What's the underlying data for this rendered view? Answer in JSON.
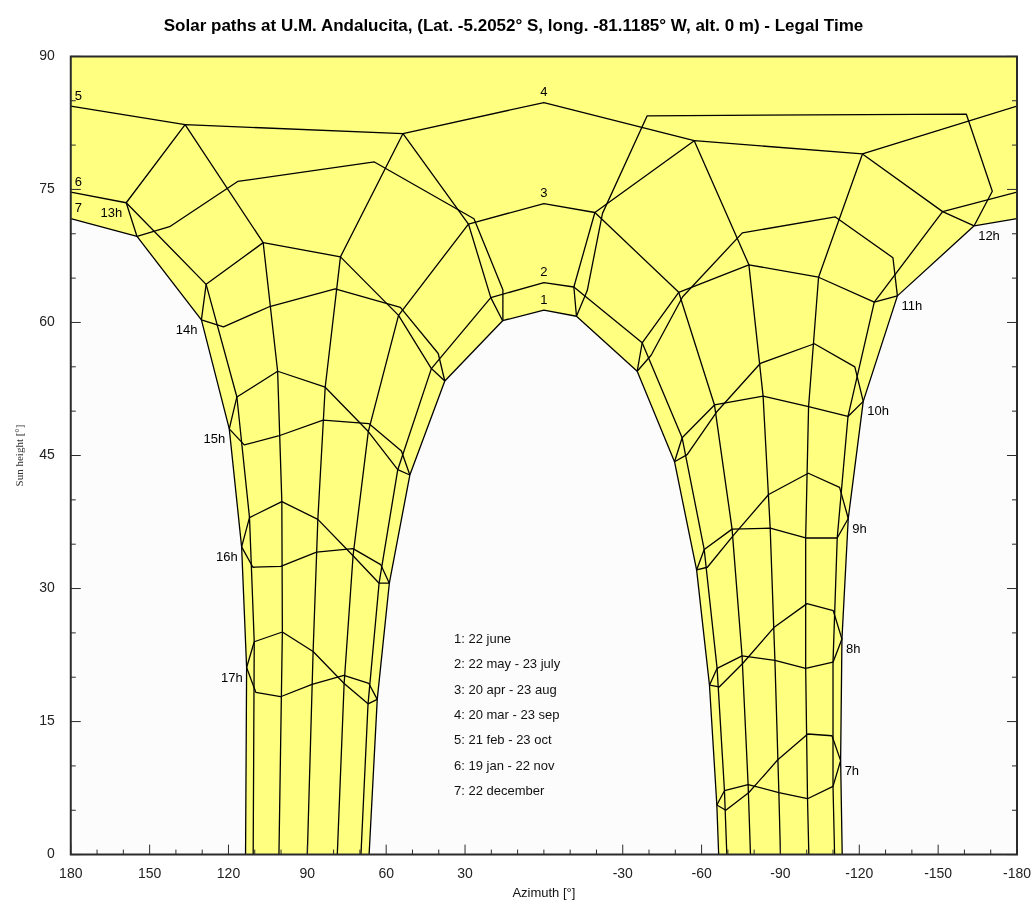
{
  "chart_data": {
    "type": "line",
    "title": "Solar paths at U.M. Andalucita, (Lat. -5.2052° S, long. -81.1185° W, alt. 0 m) - Legal Time",
    "xlabel": "Azimuth [°]",
    "ylabel": "Sun height [°]",
    "xlim": [
      180,
      -180
    ],
    "xticks": [
      180,
      {
        "value": 170,
        "label": null
      },
      {
        "value": 160,
        "label": null
      },
      150,
      {
        "value": 140,
        "label": null
      },
      {
        "value": 130,
        "label": null
      },
      120,
      {
        "value": 110,
        "label": null
      },
      {
        "value": 100,
        "label": null
      },
      90,
      {
        "value": 80,
        "label": null
      },
      {
        "value": 70,
        "label": null
      },
      60,
      {
        "value": 50,
        "label": null
      },
      {
        "value": 40,
        "label": null
      },
      30,
      {
        "value": 20,
        "label": null
      },
      {
        "value": 10,
        "label": null
      },
      {
        "value": 0,
        "label": null
      },
      {
        "value": -10,
        "label": null
      },
      {
        "value": -20,
        "label": null
      },
      -30,
      {
        "value": -40,
        "label": null
      },
      {
        "value": -50,
        "label": null
      },
      -60,
      {
        "value": -70,
        "label": null
      },
      {
        "value": -80,
        "label": null
      },
      -90,
      {
        "value": -100,
        "label": null
      },
      {
        "value": -110,
        "label": null
      },
      -120,
      {
        "value": -130,
        "label": null
      },
      {
        "value": -140,
        "label": null
      },
      -150,
      {
        "value": -160,
        "label": null
      },
      {
        "value": -170,
        "label": null
      },
      -180
    ],
    "ylim": [
      0,
      90
    ],
    "yticks": [
      0,
      {
        "value": 5,
        "label": null
      },
      {
        "value": 10,
        "label": null
      },
      15,
      {
        "value": 20,
        "label": null
      },
      {
        "value": 25,
        "label": null
      },
      30,
      {
        "value": 35,
        "label": null
      },
      {
        "value": 40,
        "label": null
      },
      45,
      {
        "value": 50,
        "label": null
      },
      {
        "value": 55,
        "label": null
      },
      60,
      {
        "value": 65,
        "label": null
      },
      {
        "value": 70,
        "label": null
      },
      75,
      {
        "value": 80,
        "label": null
      },
      {
        "value": 85,
        "label": null
      },
      90
    ],
    "marker": "none",
    "line_style": "solid",
    "annotations": [
      "1: 22 june",
      "2: 22 may - 23 july",
      "3: 20 apr - 23 aug",
      "4: 20 mar - 23 sep",
      "5: 21 feb - 23 oct",
      "6: 19 jan - 22 nov",
      "7: 22 december"
    ],
    "series": [
      {
        "name": "1",
        "color": "#000000",
        "x": [
          -66.5,
          -65.8,
          -63.0,
          -58.1,
          -49.7,
          -35.5,
          -12.4,
          0,
          15.7,
          37.7,
          51.0,
          58.8,
          63.4,
          66.5
        ],
        "values": [
          0,
          5.6,
          19.1,
          32.1,
          44.3,
          54.5,
          60.7,
          61.4,
          60.2,
          53.4,
          42.8,
          30.6,
          17.5,
          0
        ]
      },
      {
        "name": "2",
        "color": "#000000",
        "x": [
          -69.6,
          -68.7,
          -65.9,
          -61.0,
          -52.6,
          -37.4,
          -11.4,
          0,
          20.2,
          42.8,
          55.6,
          62.7,
          66.9,
          69.6
        ],
        "values": [
          0,
          7.2,
          21.0,
          34.4,
          47.0,
          57.7,
          64.0,
          64.5,
          62.8,
          54.8,
          43.4,
          30.6,
          17.0,
          0
        ]
      },
      {
        "name": "3",
        "color": "#000000",
        "x": [
          -78.6,
          -77.7,
          -75.4,
          -71.6,
          -64.9,
          -51.3,
          -19.4,
          0,
          28.7,
          55.3,
          66.8,
          72.6,
          76.0,
          78.6
        ],
        "values": [
          0,
          7.9,
          22.4,
          36.7,
          50.7,
          63.4,
          72.4,
          73.4,
          71.1,
          60.8,
          47.7,
          33.7,
          19.3,
          0
        ]
      },
      {
        "name": "4",
        "color": "#000000",
        "x": [
          -90,
          -89.4,
          -87.9,
          -86.1,
          -83.4,
          -78.0,
          -57.2,
          0,
          53.6,
          77.4,
          83.2,
          86.0,
          87.8,
          90
        ],
        "values": [
          0,
          7.0,
          21.9,
          36.8,
          51.7,
          66.5,
          80.5,
          84.8,
          81.3,
          67.4,
          52.7,
          37.8,
          22.9,
          0
        ]
      },
      {
        "name": "5",
        "color": "#000000",
        "x": [
          -100.8,
          -100.3,
          -99.6,
          -99.6,
          -100.7,
          -104.5,
          -121.2,
          -180,
          null,
          180,
          136.5,
          106.8,
          101.3,
          99.7,
          99.5,
          100.8
        ],
        "values": [
          0,
          6.3,
          21.0,
          35.7,
          50.5,
          65.1,
          79.0,
          84.4,
          null,
          84.4,
          82.3,
          69.0,
          54.5,
          39.8,
          25.1,
          0
        ]
      },
      {
        "name": "6",
        "color": "#000000",
        "x": [
          -110.6,
          -110.0,
          -110.0,
          -111.6,
          -115.7,
          -125.7,
          -151.7,
          -180,
          null,
          180,
          158.9,
          128.5,
          116.8,
          112.0,
          110.2,
          110.6
        ],
        "values": [
          0,
          7.7,
          21.7,
          35.7,
          49.4,
          62.3,
          72.5,
          74.7,
          null,
          74.7,
          73.5,
          64.3,
          51.6,
          38.0,
          24.0,
          0
        ]
      },
      {
        "name": "7",
        "color": "#000000",
        "x": [
          -113.5,
          -112.9,
          -113.4,
          -115.8,
          -121.5,
          -134.5,
          -163.7,
          -180,
          null,
          180,
          154.8,
          130.3,
          119.7,
          115.0,
          113.1,
          113.5
        ],
        "values": [
          0,
          10.6,
          24.3,
          37.9,
          51.1,
          63.0,
          70.9,
          71.7,
          null,
          71.7,
          69.7,
          60.3,
          48.0,
          34.7,
          21.1,
          0
        ]
      },
      {
        "name": "7h",
        "color": "#000000",
        "x": [
          -112.9,
          -110.0,
          -100.3,
          -89.4,
          -77.7,
          -68.7,
          -65.8
        ],
        "values": [
          10.6,
          7.7,
          6.3,
          7.0,
          7.9,
          7.2,
          5.6
        ]
      },
      {
        "color": "#000000",
        "x": [
          -65.8,
          -69.2,
          -78.0,
          -89.0,
          -100.4,
          -109.6,
          -112.9
        ],
        "values": [
          5.6,
          5.0,
          7.0,
          10.7,
          13.6,
          13.4,
          10.6
        ]
      },
      {
        "name": "8h",
        "color": "#000000",
        "x": [
          -113.4,
          -110.0,
          -99.6,
          -87.9,
          -75.4,
          -65.9,
          -63.0
        ],
        "values": [
          24.3,
          21.7,
          21.0,
          21.9,
          22.4,
          21.0,
          19.1
        ]
      },
      {
        "color": "#000000",
        "x": [
          -63.0,
          -66.7,
          -75.8,
          -87.5,
          -100.1,
          -110.1,
          -113.4
        ],
        "values": [
          19.1,
          18.9,
          21.6,
          25.6,
          28.3,
          27.5,
          24.3
        ]
      },
      {
        "name": "9h",
        "color": "#000000",
        "x": [
          -115.8,
          -111.6,
          -99.6,
          -86.1,
          -71.6,
          -61.0,
          -58.1
        ],
        "values": [
          37.9,
          35.7,
          35.7,
          36.8,
          36.7,
          34.4,
          32.1
        ]
      },
      {
        "color": "#000000",
        "x": [
          -58.1,
          -62.2,
          -72.1,
          -85.5,
          -100.6,
          -112.5,
          -115.8
        ],
        "values": [
          32.1,
          32.4,
          36.0,
          40.6,
          43.0,
          41.4,
          37.9
        ]
      },
      {
        "name": "10h",
        "color": "#000000",
        "x": [
          -121.5,
          -115.7,
          -100.7,
          -83.4,
          -64.9,
          -52.6,
          -49.7
        ],
        "values": [
          51.1,
          49.4,
          50.5,
          51.7,
          50.7,
          47.0,
          44.3
        ]
      },
      {
        "color": "#000000",
        "x": [
          -49.7,
          -54.5,
          -65.7,
          -82.4,
          -102.9,
          -118.3,
          -121.5
        ],
        "values": [
          44.3,
          45.1,
          49.9,
          55.4,
          57.6,
          55.0,
          51.1
        ]
      },
      {
        "name": "11h",
        "color": "#000000",
        "x": [
          -134.5,
          -125.7,
          -104.5,
          -78.0,
          -51.3,
          -37.4,
          -35.5
        ],
        "values": [
          63.0,
          62.3,
          65.1,
          66.5,
          63.4,
          57.7,
          54.5
        ]
      },
      {
        "color": "#000000",
        "x": [
          -35.5,
          -40.8,
          -52.8,
          -75.5,
          -110.9,
          -132.8,
          -134.5
        ],
        "values": [
          54.5,
          56.3,
          62.9,
          70.1,
          71.9,
          67.3,
          63.0
        ]
      },
      {
        "name": "12h",
        "color": "#000000",
        "x": [
          -163.7,
          -151.7,
          -121.2,
          -57.2,
          -19.4,
          -11.4,
          -12.4
        ],
        "values": [
          70.9,
          72.5,
          79.0,
          80.5,
          72.4,
          64.0,
          60.7
        ]
      },
      {
        "color": "#000000",
        "x": [
          -12.4,
          -16.5,
          -22.3,
          -39.3,
          -160.7,
          -170.6,
          -163.7
        ],
        "values": [
          60.7,
          63.6,
          72.3,
          83.3,
          83.5,
          74.8,
          70.9
        ]
      },
      {
        "name": "13h",
        "color": "#000000",
        "x": [
          154.8,
          158.9,
          136.5,
          53.6,
          28.7,
          20.2,
          15.7
        ],
        "values": [
          69.7,
          73.5,
          82.3,
          81.3,
          71.1,
          62.8,
          60.2
        ]
      },
      {
        "color": "#000000",
        "x": [
          15.7,
          15.6,
          26.6,
          64.5,
          116.5,
          142.4,
          154.8
        ],
        "values": [
          60.2,
          63.7,
          71.7,
          78.1,
          75.9,
          70.8,
          69.7
        ]
      },
      {
        "name": "14h",
        "color": "#000000",
        "x": [
          130.3,
          128.5,
          106.8,
          77.4,
          55.3,
          42.8,
          37.7
        ],
        "values": [
          60.3,
          64.3,
          69.0,
          67.4,
          60.8,
          54.8,
          53.4
        ]
      },
      {
        "color": "#000000",
        "x": [
          37.7,
          40.2,
          54.6,
          79.4,
          104.3,
          121.9,
          130.3
        ],
        "values": [
          53.4,
          56.5,
          61.7,
          63.8,
          61.8,
          59.5,
          60.3
        ]
      },
      {
        "name": "15h",
        "color": "#000000",
        "x": [
          119.7,
          116.8,
          101.3,
          83.2,
          66.8,
          55.6,
          51.0
        ],
        "values": [
          48.0,
          51.6,
          54.5,
          52.7,
          47.7,
          43.4,
          42.8
        ]
      },
      {
        "color": "#000000",
        "x": [
          51.0,
          54.2,
          66.6,
          84.0,
          101.0,
          114.0,
          119.7
        ],
        "values": [
          42.8,
          45.5,
          48.6,
          49.0,
          47.2,
          46.2,
          48.0
        ]
      },
      {
        "name": "16h",
        "color": "#000000",
        "x": [
          115.0,
          112.0,
          99.7,
          86.0,
          72.6,
          62.7,
          58.8
        ],
        "values": [
          34.7,
          38.0,
          39.8,
          37.8,
          33.7,
          30.6,
          30.6
        ]
      },
      {
        "color": "#000000",
        "x": [
          58.8,
          62.1,
          72.6,
          86.5,
          100.1,
          110.7,
          115.0
        ],
        "values": [
          30.6,
          32.7,
          34.5,
          34.1,
          32.5,
          32.4,
          34.7
        ]
      },
      {
        "name": "17h",
        "color": "#000000",
        "x": [
          113.1,
          110.2,
          99.5,
          87.8,
          76.0,
          66.9,
          63.4
        ],
        "values": [
          21.1,
          24.0,
          25.1,
          22.9,
          19.3,
          17.0,
          17.5
        ]
      },
      {
        "color": "#000000",
        "x": [
          63.4,
          66.6,
          76.1,
          88.2,
          100.2,
          109.6,
          113.1
        ],
        "values": [
          17.5,
          19.3,
          20.2,
          19.2,
          17.8,
          18.3,
          21.1
        ]
      }
    ]
  }
}
